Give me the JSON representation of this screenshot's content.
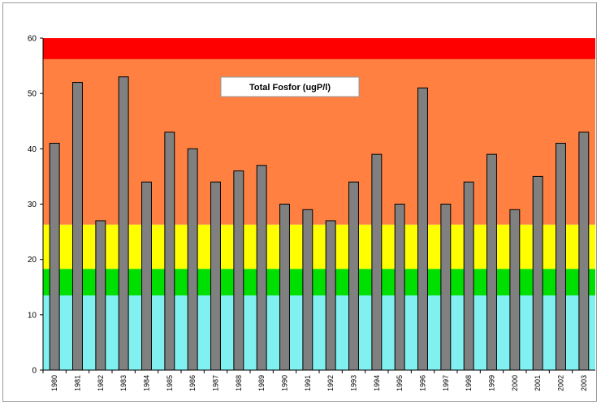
{
  "chart_data": {
    "type": "bar",
    "title": "Total Fosfor (ugP/l)",
    "xlabel": "",
    "ylabel": "",
    "ylim": [
      0,
      60
    ],
    "yticks": [
      0,
      10,
      20,
      30,
      40,
      50,
      60
    ],
    "grid": false,
    "legend": "none",
    "categories": [
      "1980",
      "1981",
      "1982",
      "1983",
      "1984",
      "1985",
      "1986",
      "1987",
      "1988",
      "1989",
      "1990",
      "1991",
      "1992",
      "1993",
      "1994",
      "1995",
      "1996",
      "1997",
      "1998",
      "1999",
      "2000",
      "2001",
      "2002",
      "2003"
    ],
    "values": [
      41,
      52,
      27,
      53,
      34,
      43,
      40,
      34,
      36,
      37,
      30,
      29,
      27,
      34,
      39,
      30,
      51,
      30,
      34,
      39,
      29,
      35,
      41,
      43
    ],
    "bar_color": "#808080",
    "bands": [
      {
        "from": 0,
        "to": 13.5,
        "color": "#80f0f0"
      },
      {
        "from": 13.5,
        "to": 18.3,
        "color": "#00e000"
      },
      {
        "from": 18.3,
        "to": 26.3,
        "color": "#ffff00"
      },
      {
        "from": 26.3,
        "to": 56.2,
        "color": "#ff8040"
      },
      {
        "from": 56.2,
        "to": 60,
        "color": "#ff0000"
      }
    ]
  }
}
